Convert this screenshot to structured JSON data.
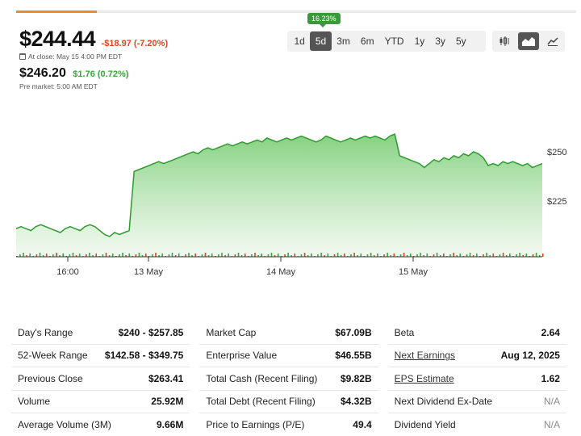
{
  "quote": {
    "price": "$244.44",
    "change": "-$18.97 (-7.20%)",
    "close_note": "At close: May 15 4:00 PM EDT",
    "premarket_price": "$246.20",
    "premarket_change": "$1.76 (0.72%)",
    "premarket_note": "Pre market: 5:00 AM EDT"
  },
  "range_tooltip": "16.23%",
  "range_tabs": [
    "1d",
    "5d",
    "3m",
    "6m",
    "YTD",
    "1y",
    "3y",
    "5y"
  ],
  "active_range": "5d",
  "chart_type_icons": [
    "candlestick-icon",
    "mountain-icon",
    "line-icon"
  ],
  "colors": {
    "accent": "#f08a24",
    "up": "#3aa63a",
    "down": "#d9471e",
    "area": "#7dcf78"
  },
  "chart_data": {
    "type": "area",
    "x_labels": [
      "16:00",
      "13 May",
      "14 May",
      "15 May"
    ],
    "y_labels": [
      "$250",
      "$225"
    ],
    "series": [
      {
        "values": [
          211,
          212,
          211,
          210,
          212,
          213,
          212,
          211,
          210,
          209,
          211,
          212,
          211,
          210,
          212,
          213,
          212,
          210,
          208,
          207,
          209,
          208,
          209,
          210,
          240,
          241,
          242,
          243,
          244,
          245,
          244,
          245,
          246,
          247,
          248,
          249,
          250,
          249,
          251,
          252,
          251,
          252,
          253,
          254,
          253,
          254,
          255,
          254,
          255,
          256,
          255,
          257,
          256,
          255,
          256,
          257,
          256,
          257,
          258,
          257,
          256,
          255,
          256,
          258,
          257,
          256,
          255,
          256,
          257,
          256,
          257,
          258,
          257,
          258,
          257,
          256,
          258,
          259,
          248,
          247,
          246,
          245,
          244,
          242,
          244,
          246,
          245,
          247,
          246,
          248,
          247,
          249,
          248,
          250,
          249,
          247,
          243,
          244,
          243,
          245,
          244,
          245,
          244,
          243,
          244,
          242,
          243,
          244
        ]
      }
    ]
  },
  "stats": {
    "col1": [
      {
        "label": "Day's Range",
        "value": "$240 - $257.85"
      },
      {
        "label": "52-Week Range",
        "value": "$142.58 - $349.75"
      },
      {
        "label": "Previous Close",
        "value": "$263.41"
      },
      {
        "label": "Volume",
        "value": "25.92M"
      },
      {
        "label": "Average Volume (3M)",
        "value": "9.66M"
      }
    ],
    "col2": [
      {
        "label": "Market Cap",
        "value": "$67.09B"
      },
      {
        "label": "Enterprise Value",
        "value": "$46.55B"
      },
      {
        "label": "Total Cash (Recent Filing)",
        "value": "$9.82B"
      },
      {
        "label": "Total Debt (Recent Filing)",
        "value": "$4.32B"
      },
      {
        "label": "Price to Earnings (P/E)",
        "value": "49.4"
      }
    ],
    "col3": [
      {
        "label": "Beta",
        "value": "2.64"
      },
      {
        "label": "Next Earnings",
        "value": "Aug 12, 2025"
      },
      {
        "label": "EPS Estimate",
        "value": "1.62"
      },
      {
        "label": "Next Dividend Ex-Date",
        "value": "N/A"
      },
      {
        "label": "Dividend Yield",
        "value": "N/A"
      }
    ]
  }
}
